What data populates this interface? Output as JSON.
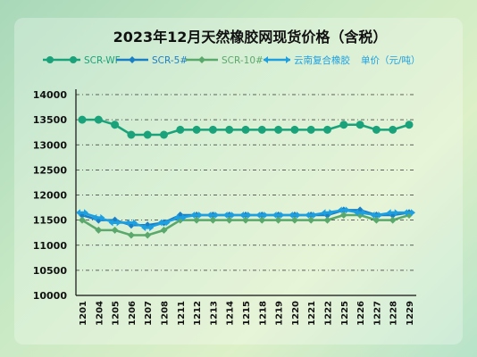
{
  "chart_data": {
    "type": "line",
    "title": "2023年12月天然橡胶网现货价格（含税）",
    "ylabel": "",
    "xlabel": "",
    "ylim": [
      10000,
      14000
    ],
    "yticks": [
      10000,
      10500,
      11000,
      11500,
      12000,
      12500,
      13000,
      13500,
      14000
    ],
    "grid": true,
    "legend_position": "top",
    "categories": [
      "1201",
      "1204",
      "1205",
      "1206",
      "1207",
      "1208",
      "1211",
      "1212",
      "1213",
      "1214",
      "1215",
      "1218",
      "1219",
      "1220",
      "1221",
      "1222",
      "1225",
      "1226",
      "1227",
      "1228",
      "1229"
    ],
    "series": [
      {
        "name": "SCR-WF",
        "color": "#1aa37a",
        "marker": "circle",
        "values": [
          13500,
          13500,
          13400,
          13200,
          13200,
          13200,
          13300,
          13300,
          13300,
          13300,
          13300,
          13300,
          13300,
          13300,
          13300,
          13300,
          13400,
          13400,
          13300,
          13300,
          13400
        ]
      },
      {
        "name": "SCR-5#",
        "color": "#1b7fc4",
        "marker": "diamond",
        "values": [
          11600,
          11500,
          11500,
          11400,
          11400,
          11450,
          11600,
          11600,
          11600,
          11600,
          11600,
          11600,
          11600,
          11600,
          11600,
          11600,
          11700,
          11700,
          11600,
          11600,
          11650
        ]
      },
      {
        "name": "SCR-10#",
        "color": "#5aa86b",
        "marker": "diamond",
        "values": [
          11500,
          11300,
          11300,
          11200,
          11200,
          11300,
          11500,
          11500,
          11500,
          11500,
          11500,
          11500,
          11500,
          11500,
          11500,
          11500,
          11600,
          11600,
          11500,
          11500,
          11600
        ]
      },
      {
        "name": "云南复合橡胶",
        "color": "#1ea0e0",
        "marker": "arrow",
        "values": [
          11650,
          11550,
          11450,
          11450,
          11350,
          11450,
          11550,
          11600,
          11600,
          11600,
          11600,
          11600,
          11600,
          11600,
          11600,
          11650,
          11700,
          11650,
          11600,
          11650,
          11650
        ]
      }
    ],
    "unit_note": "单价（元/吨）"
  },
  "colors": {
    "axis": "#111111",
    "grid": "#333333",
    "title": "#111111"
  }
}
